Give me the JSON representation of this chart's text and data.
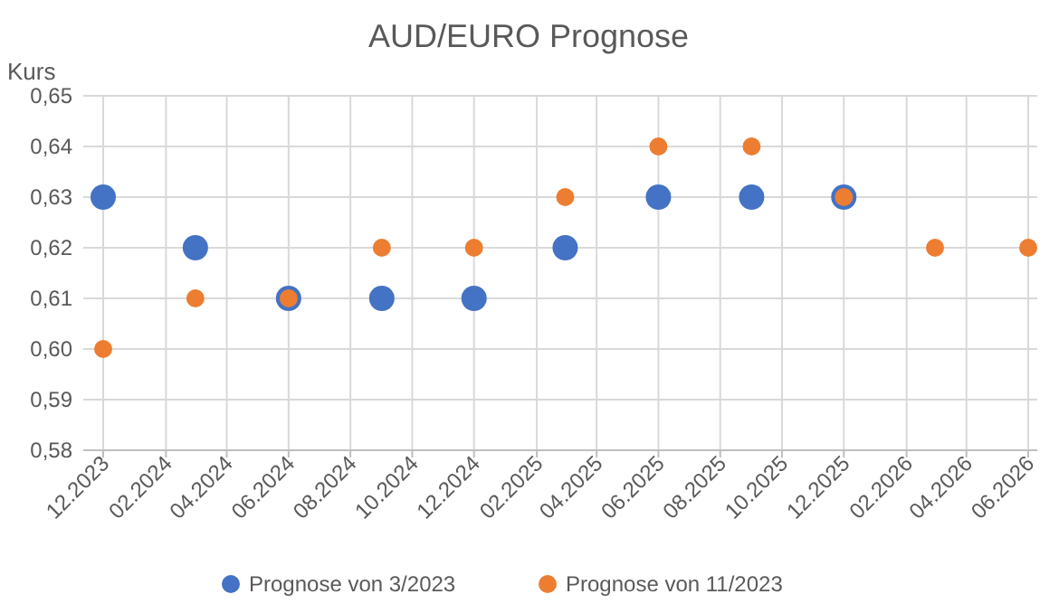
{
  "chart_data": {
    "type": "scatter",
    "title": "AUD/EURO Prognose",
    "ylabel": "Kurs",
    "x": [
      "2023-12",
      "2024-03",
      "2024-06",
      "2024-09",
      "2024-12",
      "2025-03",
      "2025-06",
      "2025-09",
      "2025-12",
      "2026-03",
      "2026-06"
    ],
    "series": [
      {
        "name": "Prognose von 3/2023",
        "color": "#4472c4",
        "values": [
          0.63,
          0.62,
          0.61,
          0.61,
          0.61,
          0.62,
          0.63,
          0.63,
          0.63,
          null,
          null
        ]
      },
      {
        "name": "Prognose von 11/2023",
        "color": "#ed7d31",
        "values": [
          0.6,
          0.61,
          0.61,
          0.62,
          0.62,
          0.63,
          0.64,
          0.64,
          0.63,
          0.62,
          0.62
        ]
      }
    ],
    "xlim": [
      "2023-12",
      "2026-06"
    ],
    "xticks": [
      {
        "value": "2023-12",
        "label": "12.2023"
      },
      {
        "value": "2024-02",
        "label": "02.2024"
      },
      {
        "value": "2024-04",
        "label": "04.2024"
      },
      {
        "value": "2024-06",
        "label": "06.2024"
      },
      {
        "value": "2024-08",
        "label": "08.2024"
      },
      {
        "value": "2024-10",
        "label": "10.2024"
      },
      {
        "value": "2024-12",
        "label": "12.2024"
      },
      {
        "value": "2025-02",
        "label": "02.2025"
      },
      {
        "value": "2025-04",
        "label": "04.2025"
      },
      {
        "value": "2025-06",
        "label": "06.2025"
      },
      {
        "value": "2025-08",
        "label": "08.2025"
      },
      {
        "value": "2025-10",
        "label": "10.2025"
      },
      {
        "value": "2025-12",
        "label": "12.2025"
      },
      {
        "value": "2026-02",
        "label": "02.2026"
      },
      {
        "value": "2026-04",
        "label": "04.2026"
      },
      {
        "value": "2026-06",
        "label": "06.2026"
      }
    ],
    "ylim": [
      0.58,
      0.65
    ],
    "yticks": [
      {
        "value": 0.58,
        "label": "0,58"
      },
      {
        "value": 0.59,
        "label": "0,59"
      },
      {
        "value": 0.6,
        "label": "0,60"
      },
      {
        "value": 0.61,
        "label": "0,61"
      },
      {
        "value": 0.62,
        "label": "0,62"
      },
      {
        "value": 0.63,
        "label": "0,63"
      },
      {
        "value": 0.64,
        "label": "0,64"
      },
      {
        "value": 0.65,
        "label": "0,65"
      }
    ],
    "grid": true,
    "legend": "bottom",
    "marker": "circle"
  }
}
